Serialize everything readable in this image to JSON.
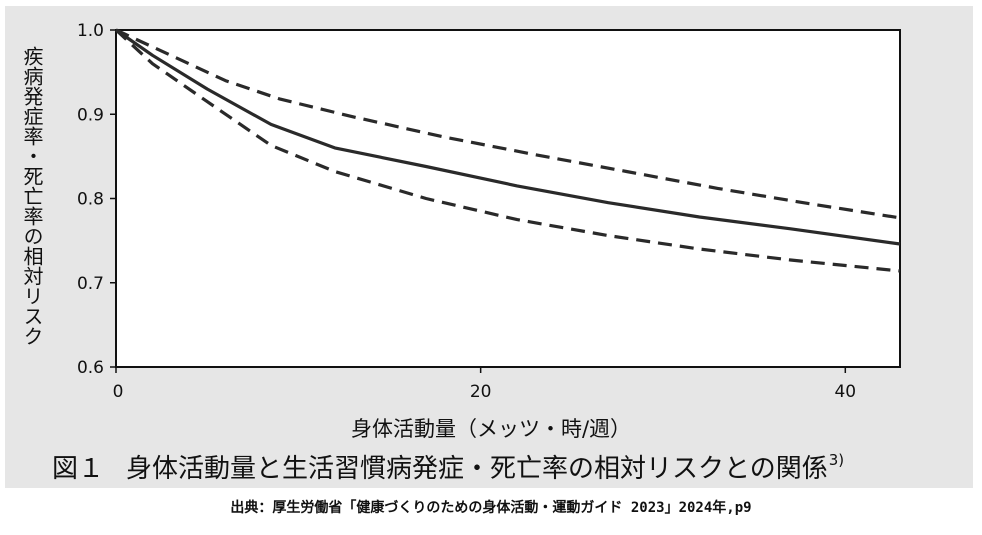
{
  "chart_data": {
    "type": "line",
    "ylabel": "疾病発症率・死亡率の相対リスク",
    "xlabel": "身体活動量（メッツ・時/週）",
    "xlim": [
      0,
      43
    ],
    "ylim": [
      0.6,
      1.0
    ],
    "x_ticks": [
      0,
      20,
      40
    ],
    "x_tick_labels": [
      "0",
      "20",
      "40"
    ],
    "y_ticks": [
      0.6,
      0.7,
      0.8,
      0.9,
      1.0
    ],
    "y_tick_labels": [
      "0.6",
      "0.7",
      "0.8",
      "0.9",
      "1.0"
    ],
    "grid": false,
    "series": [
      {
        "style": "solid",
        "points": [
          [
            0,
            1.0
          ],
          [
            2,
            0.97
          ],
          [
            5,
            0.93
          ],
          [
            8.5,
            0.888
          ],
          [
            12,
            0.86
          ],
          [
            17,
            0.838
          ],
          [
            22,
            0.815
          ],
          [
            27,
            0.795
          ],
          [
            32,
            0.778
          ],
          [
            37,
            0.764
          ],
          [
            43,
            0.746
          ]
        ]
      },
      {
        "style": "dashed",
        "points": [
          [
            0,
            1.0
          ],
          [
            3,
            0.97
          ],
          [
            6,
            0.94
          ],
          [
            9,
            0.918
          ],
          [
            13,
            0.897
          ],
          [
            18,
            0.873
          ],
          [
            23,
            0.852
          ],
          [
            28,
            0.832
          ],
          [
            33,
            0.812
          ],
          [
            38,
            0.794
          ],
          [
            43,
            0.777
          ]
        ]
      },
      {
        "style": "dashed",
        "points": [
          [
            0,
            1.0
          ],
          [
            2,
            0.96
          ],
          [
            5,
            0.915
          ],
          [
            8.5,
            0.863
          ],
          [
            12,
            0.832
          ],
          [
            17,
            0.8
          ],
          [
            22,
            0.775
          ],
          [
            27,
            0.756
          ],
          [
            32,
            0.74
          ],
          [
            37,
            0.727
          ],
          [
            43,
            0.714
          ]
        ]
      }
    ]
  },
  "caption": {
    "number": "図１",
    "text": "身体活動量と生活習慣病発症・死亡率の相対リスクとの関係",
    "ref": "3)"
  },
  "source": "出典：厚生労働省「健康づくりのための身体活動・運動ガイド 2023」2024年,p9"
}
